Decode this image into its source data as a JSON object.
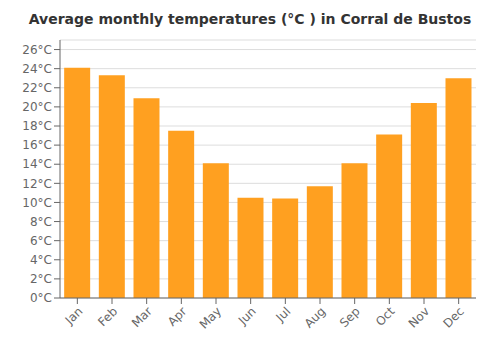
{
  "chart_data": {
    "type": "bar",
    "title": "Average monthly temperatures (°C ) in Corral de Bustos",
    "categories": [
      "Jan",
      "Feb",
      "Mar",
      "Apr",
      "May",
      "Jun",
      "Jul",
      "Aug",
      "Sep",
      "Oct",
      "Nov",
      "Dec"
    ],
    "values": [
      24.1,
      23.3,
      20.9,
      17.5,
      14.1,
      10.5,
      10.4,
      11.7,
      14.1,
      17.1,
      20.4,
      23.0
    ],
    "color": "#FFA020",
    "ylim": [
      0,
      27
    ],
    "yticks": [
      {
        "value": 0,
        "label": "0°C"
      },
      {
        "value": 2,
        "label": "2°C"
      },
      {
        "value": 4,
        "label": "4°C"
      },
      {
        "value": 6,
        "label": "6°C"
      },
      {
        "value": 8,
        "label": "8°C"
      },
      {
        "value": 10,
        "label": "10°C"
      },
      {
        "value": 12,
        "label": "12°C"
      },
      {
        "value": 14,
        "label": "14°C"
      },
      {
        "value": 16,
        "label": "16°C"
      },
      {
        "value": 18,
        "label": "18°C"
      },
      {
        "value": 20,
        "label": "20°C"
      },
      {
        "value": 22,
        "label": "22°C"
      },
      {
        "value": 24,
        "label": "24°C"
      },
      {
        "value": 26,
        "label": "26°C"
      }
    ],
    "grid": true
  }
}
